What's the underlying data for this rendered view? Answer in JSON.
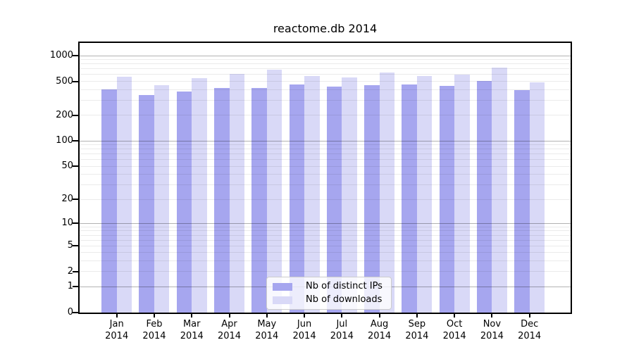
{
  "chart_data": {
    "type": "bar",
    "title": "reactome.db 2014",
    "xlabel": "",
    "ylabel": "",
    "yscale": "log1p",
    "grid": true,
    "legend_position": "bottom-center",
    "categories": [
      "Jan 2014",
      "Feb 2014",
      "Mar 2014",
      "Apr 2014",
      "May 2014",
      "Jun 2014",
      "Jul 2014",
      "Aug 2014",
      "Sep 2014",
      "Oct 2014",
      "Nov 2014",
      "Dec 2014"
    ],
    "x_tick_line1": [
      "Jan",
      "Feb",
      "Mar",
      "Apr",
      "May",
      "Jun",
      "Jul",
      "Aug",
      "Sep",
      "Oct",
      "Nov",
      "Dec"
    ],
    "x_tick_line2": "2014",
    "y_tick_labels": [
      "0",
      "1",
      "2",
      "5",
      "10",
      "20",
      "50",
      "100",
      "200",
      "500",
      "1000"
    ],
    "y_tick_values": [
      0,
      1,
      2,
      5,
      10,
      20,
      50,
      100,
      200,
      500,
      1000
    ],
    "y_grid_major": [
      1,
      10,
      100,
      1000
    ],
    "y_grid_minor": [
      2,
      3,
      4,
      5,
      6,
      7,
      8,
      9,
      20,
      30,
      40,
      50,
      60,
      70,
      80,
      90,
      200,
      300,
      400,
      500,
      600,
      700,
      800,
      900
    ],
    "ylim": [
      0,
      1430
    ],
    "series": [
      {
        "name": "Nb of distinct IPs",
        "color": "#a6a6ef",
        "values": [
          405,
          345,
          378,
          420,
          422,
          460,
          432,
          448,
          462,
          442,
          505,
          392
        ]
      },
      {
        "name": "Nb of downloads",
        "color": "#d9d9f7",
        "values": [
          565,
          450,
          548,
          610,
          680,
          582,
          555,
          637,
          575,
          600,
          725,
          490
        ]
      }
    ]
  }
}
